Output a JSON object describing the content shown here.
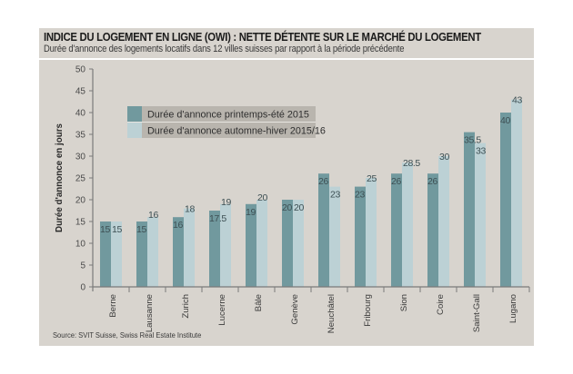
{
  "header": {
    "title": "INDICE DU LOGEMENT EN LIGNE (OWI) : NETTE DÉTENTE SUR LE MARCHÉ DU LOGEMENT",
    "subtitle": "Durée d'annonce des logements locatifs dans 12 villes suisses par rapport à la période précédente"
  },
  "footer": {
    "source": "Source: SVIT Suisse, Swiss Real Estate Institute"
  },
  "colors": {
    "background": "#d8d4ce",
    "series1": "#71999e",
    "series2": "#bcd1d5",
    "legend_bg": "#b9b5ae"
  },
  "chart_data": {
    "type": "bar",
    "title": "INDICE DU LOGEMENT EN LIGNE (OWI) : NETTE DÉTENTE SUR LE MARCHÉ DU LOGEMENT",
    "subtitle": "Durée d'annonce des logements locatifs dans 12 villes suisses par rapport à la période précédente",
    "xlabel": "",
    "ylabel": "Durée d'annonce en jours",
    "ylim": [
      0,
      50
    ],
    "yticks": [
      0,
      5,
      10,
      15,
      20,
      25,
      30,
      35,
      40,
      45,
      50
    ],
    "grid": false,
    "legend_position": "top-left",
    "categories": [
      "Berne",
      "Lausanne",
      "Zurich",
      "Lucerne",
      "Bâle",
      "Genève",
      "Neuchâtel",
      "Fribourg",
      "Sion",
      "Coire",
      "Saint-Gall",
      "Lugano"
    ],
    "series": [
      {
        "name": "Durée d'annonce printemps-été 2015",
        "values": [
          15,
          15,
          16,
          17.5,
          19,
          20,
          26,
          23,
          26,
          26,
          35.5,
          40
        ],
        "labels": [
          "15",
          "15",
          "16",
          "17.5",
          "19",
          "20",
          "26",
          "23",
          "26",
          "26",
          "35.5",
          "40"
        ]
      },
      {
        "name": "Durée d'annonce automne-hiver 2015/16",
        "values": [
          15,
          16,
          18,
          19,
          20,
          20,
          23,
          25,
          28.5,
          30,
          33,
          43
        ],
        "labels": [
          "15",
          "16",
          "18",
          "19",
          "20",
          "20",
          "23",
          "25",
          "28.5",
          "30",
          "33",
          "43"
        ]
      }
    ]
  }
}
